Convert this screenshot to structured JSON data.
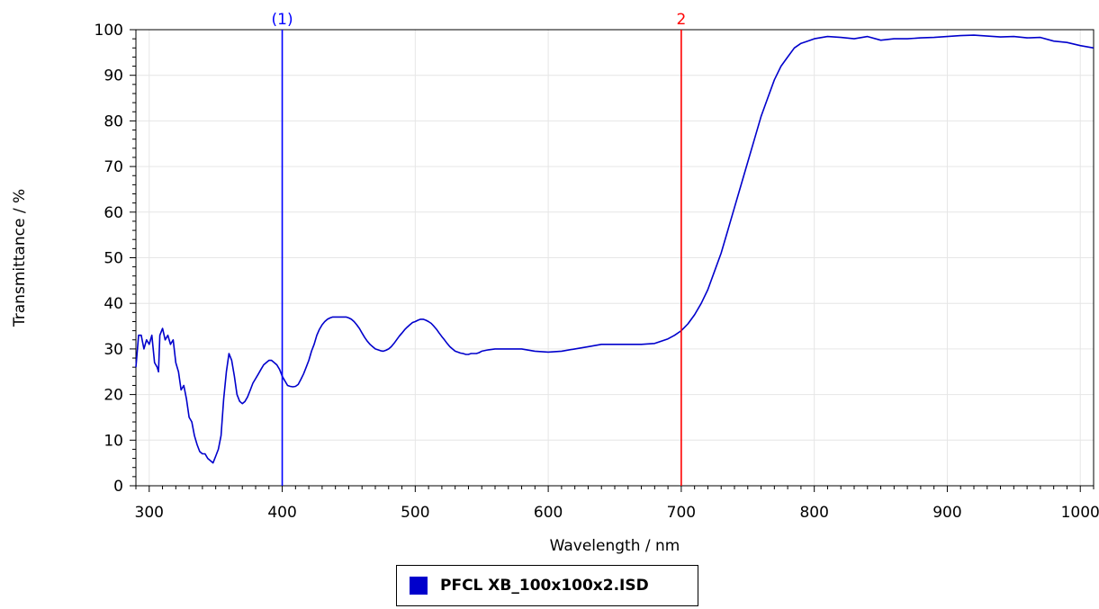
{
  "chart_data": {
    "type": "line",
    "xlabel": "Wavelength / nm",
    "ylabel": "Transmittance / %",
    "xlim": [
      290,
      1010
    ],
    "ylim": [
      0,
      100
    ],
    "x_ticks": [
      300,
      400,
      500,
      600,
      700,
      800,
      900,
      1000
    ],
    "y_ticks": [
      0,
      10,
      20,
      30,
      40,
      50,
      60,
      70,
      80,
      90,
      100
    ],
    "grid": true,
    "legend_position": "bottom-center",
    "markers": [
      {
        "label": "(1)",
        "x": 400,
        "color": "#0000ff"
      },
      {
        "label": "2",
        "x": 700,
        "color": "#ff0000"
      }
    ],
    "series": [
      {
        "name": "PFCL XB_100x100x2.ISD",
        "color": "#0000cc",
        "points": [
          [
            290,
            26
          ],
          [
            292,
            33
          ],
          [
            294,
            33
          ],
          [
            296,
            30
          ],
          [
            298,
            32
          ],
          [
            300,
            31
          ],
          [
            302,
            33
          ],
          [
            304,
            27
          ],
          [
            306,
            26
          ],
          [
            307,
            25
          ],
          [
            308,
            33
          ],
          [
            310,
            34.5
          ],
          [
            312,
            32
          ],
          [
            314,
            33
          ],
          [
            316,
            31
          ],
          [
            318,
            32
          ],
          [
            320,
            27
          ],
          [
            322,
            25
          ],
          [
            324,
            21
          ],
          [
            326,
            22
          ],
          [
            328,
            19
          ],
          [
            330,
            15
          ],
          [
            332,
            14
          ],
          [
            334,
            11
          ],
          [
            336,
            9
          ],
          [
            338,
            7.5
          ],
          [
            340,
            7
          ],
          [
            342,
            7
          ],
          [
            344,
            6
          ],
          [
            346,
            5.5
          ],
          [
            348,
            5
          ],
          [
            350,
            6.5
          ],
          [
            352,
            8
          ],
          [
            354,
            11
          ],
          [
            356,
            19
          ],
          [
            358,
            25
          ],
          [
            360,
            29
          ],
          [
            362,
            27.5
          ],
          [
            364,
            24
          ],
          [
            366,
            20
          ],
          [
            368,
            18.5
          ],
          [
            370,
            18
          ],
          [
            372,
            18.5
          ],
          [
            374,
            19.5
          ],
          [
            376,
            21
          ],
          [
            378,
            22.5
          ],
          [
            380,
            23.5
          ],
          [
            382,
            24.5
          ],
          [
            384,
            25.5
          ],
          [
            386,
            26.5
          ],
          [
            388,
            27
          ],
          [
            390,
            27.5
          ],
          [
            392,
            27.5
          ],
          [
            394,
            27
          ],
          [
            396,
            26.5
          ],
          [
            398,
            25.5
          ],
          [
            400,
            24
          ],
          [
            402,
            23
          ],
          [
            404,
            22
          ],
          [
            406,
            21.8
          ],
          [
            408,
            21.7
          ],
          [
            410,
            21.8
          ],
          [
            412,
            22.2
          ],
          [
            414,
            23.3
          ],
          [
            416,
            24.5
          ],
          [
            418,
            26
          ],
          [
            420,
            27.5
          ],
          [
            422,
            29.5
          ],
          [
            424,
            31
          ],
          [
            426,
            33
          ],
          [
            428,
            34.3
          ],
          [
            430,
            35.3
          ],
          [
            432,
            36
          ],
          [
            434,
            36.5
          ],
          [
            436,
            36.8
          ],
          [
            438,
            37
          ],
          [
            440,
            37
          ],
          [
            442,
            37
          ],
          [
            444,
            37
          ],
          [
            446,
            37
          ],
          [
            448,
            37
          ],
          [
            450,
            36.8
          ],
          [
            452,
            36.5
          ],
          [
            454,
            36
          ],
          [
            456,
            35.3
          ],
          [
            458,
            34.5
          ],
          [
            460,
            33.5
          ],
          [
            462,
            32.5
          ],
          [
            464,
            31.7
          ],
          [
            466,
            31
          ],
          [
            468,
            30.5
          ],
          [
            470,
            30
          ],
          [
            472,
            29.8
          ],
          [
            474,
            29.6
          ],
          [
            476,
            29.5
          ],
          [
            478,
            29.7
          ],
          [
            480,
            30
          ],
          [
            482,
            30.5
          ],
          [
            484,
            31.2
          ],
          [
            486,
            32
          ],
          [
            488,
            32.8
          ],
          [
            490,
            33.5
          ],
          [
            492,
            34.2
          ],
          [
            494,
            34.8
          ],
          [
            496,
            35.3
          ],
          [
            498,
            35.8
          ],
          [
            500,
            36
          ],
          [
            502,
            36.3
          ],
          [
            504,
            36.5
          ],
          [
            506,
            36.5
          ],
          [
            508,
            36.3
          ],
          [
            510,
            36
          ],
          [
            512,
            35.6
          ],
          [
            514,
            35
          ],
          [
            516,
            34.3
          ],
          [
            518,
            33.5
          ],
          [
            520,
            32.7
          ],
          [
            522,
            32
          ],
          [
            524,
            31.2
          ],
          [
            526,
            30.5
          ],
          [
            528,
            30
          ],
          [
            530,
            29.5
          ],
          [
            532,
            29.3
          ],
          [
            534,
            29.1
          ],
          [
            536,
            29
          ],
          [
            538,
            28.8
          ],
          [
            540,
            28.8
          ],
          [
            542,
            29
          ],
          [
            544,
            29
          ],
          [
            546,
            29
          ],
          [
            548,
            29.2
          ],
          [
            550,
            29.5
          ],
          [
            555,
            29.8
          ],
          [
            560,
            30
          ],
          [
            570,
            30
          ],
          [
            580,
            30
          ],
          [
            590,
            29.5
          ],
          [
            600,
            29.3
          ],
          [
            610,
            29.5
          ],
          [
            620,
            30
          ],
          [
            630,
            30.5
          ],
          [
            640,
            31
          ],
          [
            650,
            31
          ],
          [
            660,
            31
          ],
          [
            670,
            31
          ],
          [
            680,
            31.2
          ],
          [
            690,
            32.2
          ],
          [
            695,
            33
          ],
          [
            700,
            34
          ],
          [
            705,
            35.5
          ],
          [
            710,
            37.5
          ],
          [
            715,
            40
          ],
          [
            720,
            43
          ],
          [
            725,
            47
          ],
          [
            730,
            51
          ],
          [
            735,
            56
          ],
          [
            740,
            61
          ],
          [
            745,
            66
          ],
          [
            750,
            71
          ],
          [
            755,
            76
          ],
          [
            760,
            81
          ],
          [
            765,
            85
          ],
          [
            770,
            89
          ],
          [
            775,
            92
          ],
          [
            780,
            94
          ],
          [
            785,
            96
          ],
          [
            790,
            97
          ],
          [
            795,
            97.5
          ],
          [
            800,
            98
          ],
          [
            810,
            98.5
          ],
          [
            820,
            98.3
          ],
          [
            830,
            98
          ],
          [
            840,
            98.5
          ],
          [
            850,
            97.7
          ],
          [
            860,
            98
          ],
          [
            870,
            98
          ],
          [
            880,
            98.2
          ],
          [
            890,
            98.3
          ],
          [
            900,
            98.5
          ],
          [
            910,
            98.7
          ],
          [
            920,
            98.8
          ],
          [
            930,
            98.6
          ],
          [
            940,
            98.4
          ],
          [
            950,
            98.5
          ],
          [
            960,
            98.2
          ],
          [
            970,
            98.3
          ],
          [
            980,
            97.5
          ],
          [
            990,
            97.2
          ],
          [
            1000,
            96.5
          ],
          [
            1010,
            96
          ]
        ]
      }
    ]
  }
}
